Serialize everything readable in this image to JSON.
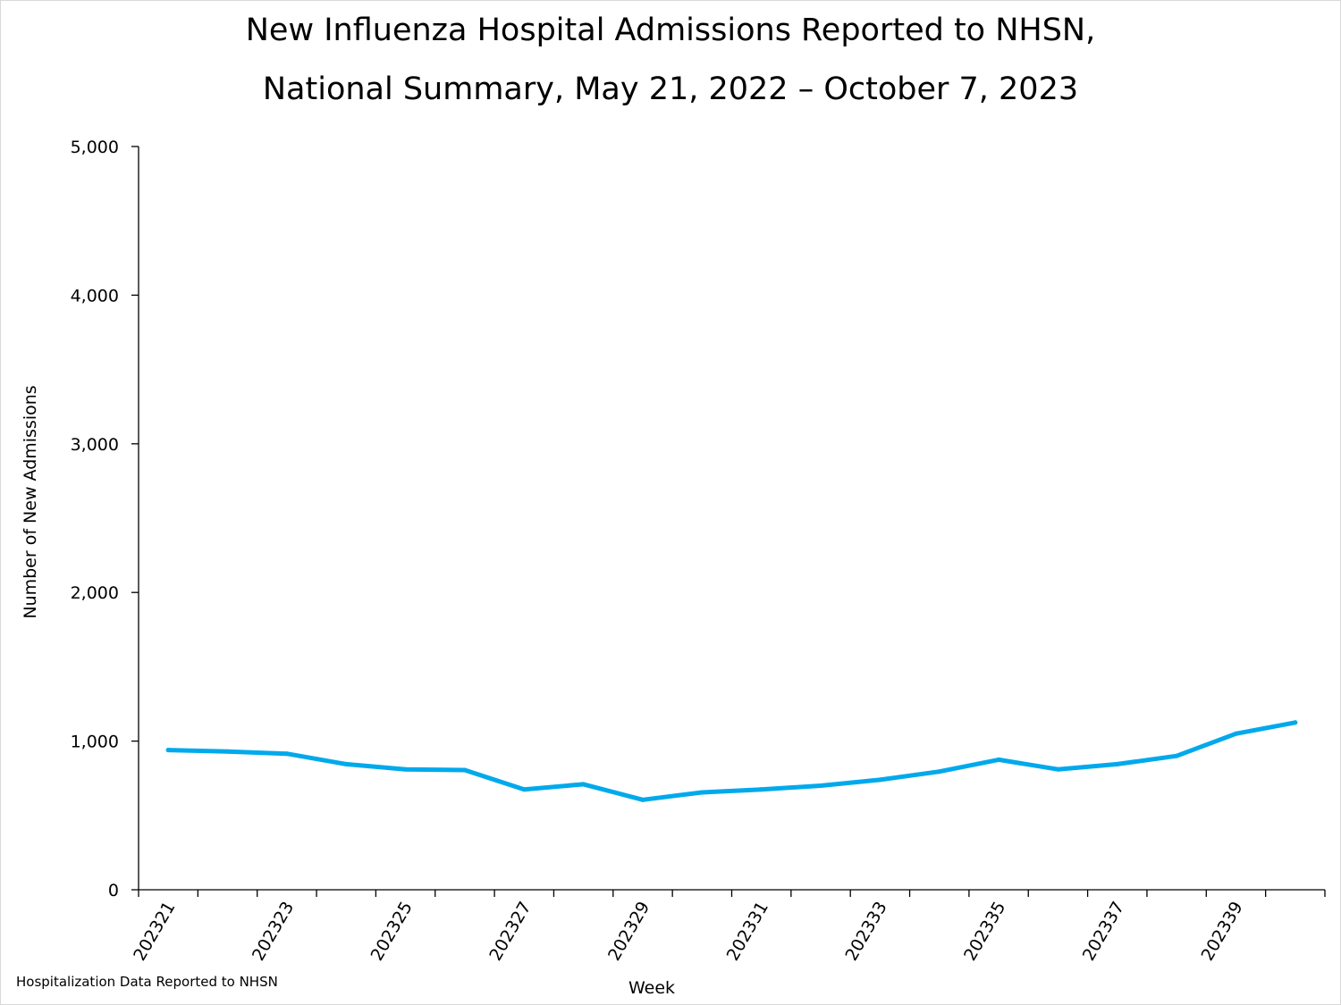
{
  "chart_data": {
    "type": "line",
    "title_line1": "New Influenza Hospital Admissions Reported to NHSN,",
    "title_line2": "National Summary, May 21, 2022 – October 7, 2023",
    "xlabel": "Week",
    "ylabel": "Number of New Admissions",
    "ylim": [
      0,
      5000
    ],
    "yticks": [
      "0",
      "1,000",
      "2,000",
      "3,000",
      "4,000",
      "5,000"
    ],
    "grid": false,
    "x": [
      "202321",
      "202322",
      "202323",
      "202324",
      "202325",
      "202326",
      "202327",
      "202328",
      "202329",
      "202330",
      "202331",
      "202332",
      "202333",
      "202334",
      "202335",
      "202336",
      "202337",
      "202338",
      "202339",
      "202340"
    ],
    "xtick_labels": [
      "202321",
      "202323",
      "202325",
      "202327",
      "202329",
      "202331",
      "202333",
      "202335",
      "202337",
      "202339"
    ],
    "series": [
      {
        "values": [
          940,
          930,
          915,
          845,
          810,
          805,
          675,
          710,
          605,
          655,
          675,
          700,
          740,
          795,
          875,
          810,
          845,
          900,
          1050,
          1125
        ],
        "color": "#00a9ec"
      }
    ],
    "footnote": "Hospitalization Data Reported to NHSN"
  }
}
